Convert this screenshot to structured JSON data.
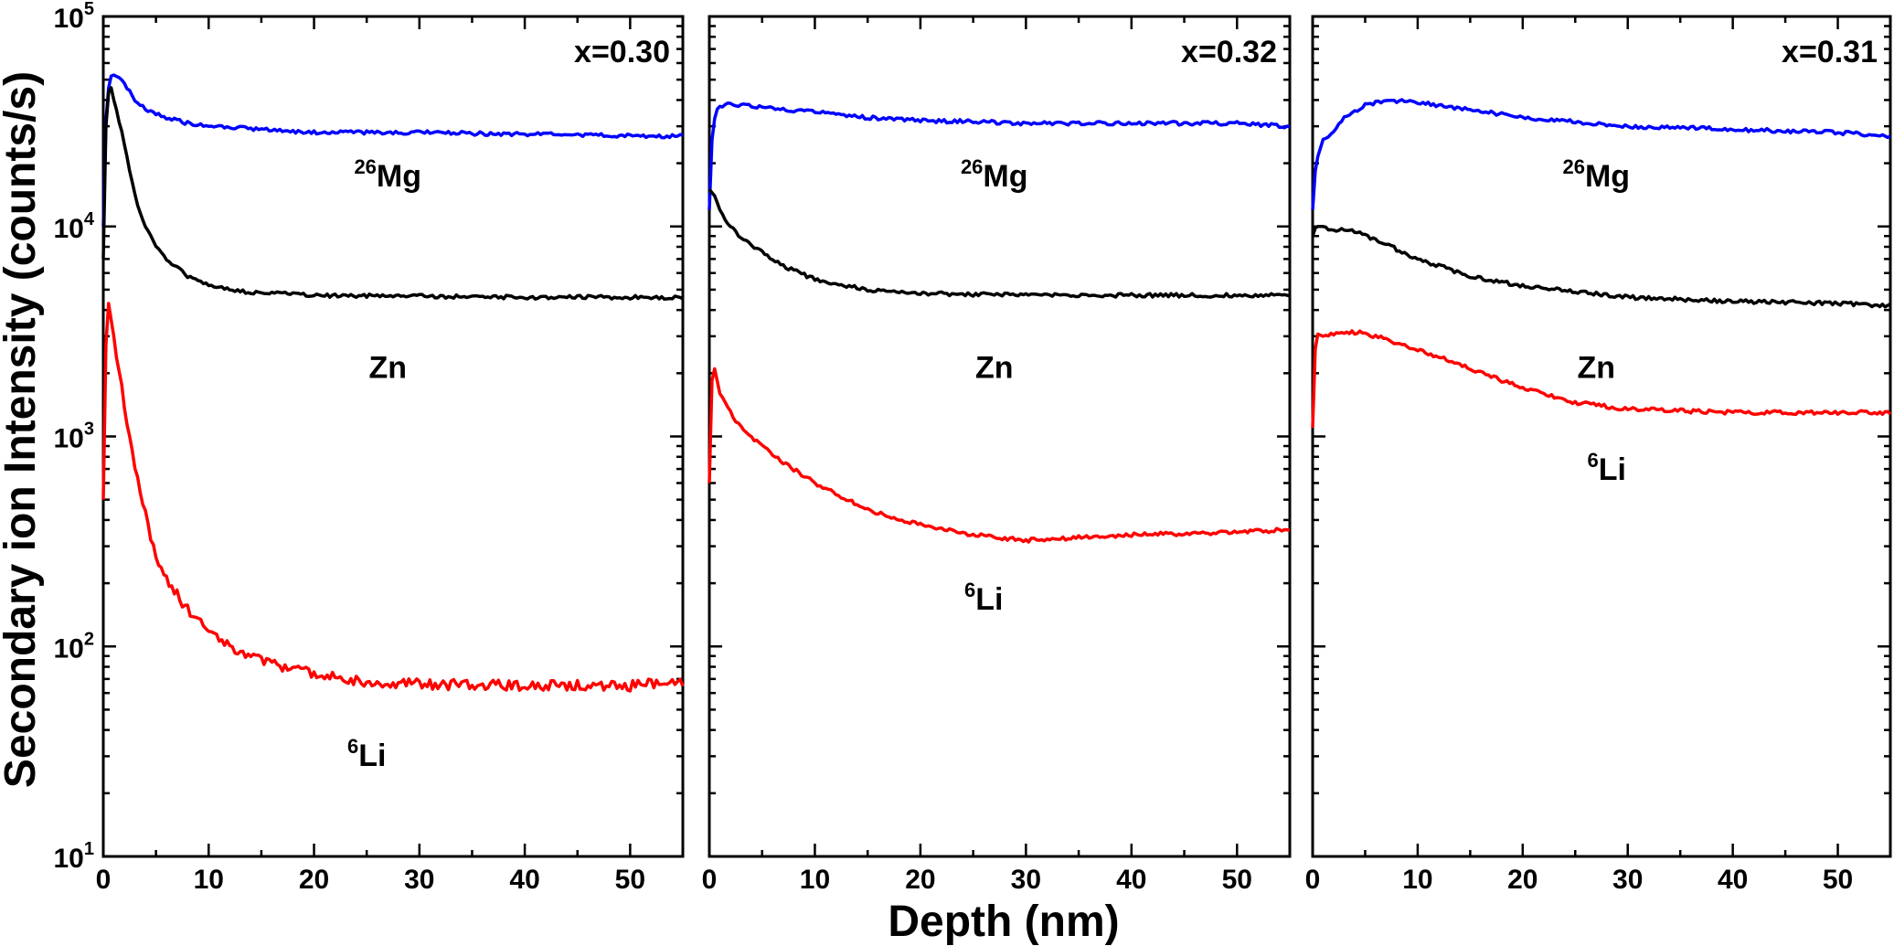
{
  "chart_data": {
    "type": "line",
    "y_scale": "log",
    "ylabel": "Secondary ion Intensity (counts/s)",
    "xlabel": "Depth (nm)",
    "xlim": [
      0,
      55
    ],
    "ylim": [
      10,
      100000
    ],
    "x_ticks": [
      "0",
      "10",
      "20",
      "30",
      "40",
      "50"
    ],
    "y_ticks": [
      {
        "base": "10",
        "exp": "1"
      },
      {
        "base": "10",
        "exp": "2"
      },
      {
        "base": "10",
        "exp": "3"
      },
      {
        "base": "10",
        "exp": "4"
      },
      {
        "base": "10",
        "exp": "5"
      }
    ],
    "panels": [
      {
        "label": "x=0.30",
        "series": [
          {
            "name": "26Mg",
            "sup": "26",
            "base": "Mg",
            "color": "#0000ff",
            "x": [
              0,
              0.3,
              0.7,
              1.2,
              2,
              3,
              4,
              6,
              8,
              10,
              15,
              20,
              30,
              40,
              50,
              55
            ],
            "y": [
              10000,
              40000,
              52000,
              53000,
              48000,
              40000,
              36000,
              33000,
              31000,
              30000,
              29000,
              28000,
              28000,
              27500,
              27000,
              27000
            ]
          },
          {
            "name": "Zn",
            "sup": "",
            "base": "Zn",
            "color": "#000000",
            "x": [
              0,
              0.3,
              0.7,
              1,
              2,
              3,
              4,
              5,
              6,
              8,
              10,
              13,
              20,
              30,
              40,
              50,
              55
            ],
            "y": [
              7000,
              40000,
              47000,
              40000,
              25000,
              14000,
              10000,
              8000,
              7000,
              5800,
              5200,
              4900,
              4700,
              4650,
              4600,
              4600,
              4600
            ]
          },
          {
            "name": "6Li",
            "sup": "6",
            "base": "Li",
            "color": "#ff0000",
            "x": [
              0,
              0.2,
              0.5,
              1,
              2,
              3,
              4,
              5,
              6,
              8,
              10,
              12,
              15,
              20,
              25,
              30,
              40,
              50,
              55
            ],
            "y": [
              500,
              2500,
              4300,
              3000,
              1400,
              700,
              420,
              270,
              210,
              150,
              120,
              100,
              85,
              75,
              68,
              66,
              65,
              65,
              68
            ]
          }
        ],
        "series_labels": [
          {
            "ref": "26Mg",
            "x": 27,
            "y": 15500
          },
          {
            "ref": "Zn",
            "x": 27,
            "y": 1900
          },
          {
            "ref": "6Li",
            "x": 25,
            "y": 27
          }
        ]
      },
      {
        "label": "x=0.32",
        "series": [
          {
            "name": "26Mg",
            "sup": "26",
            "base": "Mg",
            "color": "#0000ff",
            "x": [
              0,
              0.3,
              0.8,
              1.5,
              3,
              5,
              10,
              15,
              20,
              30,
              40,
              50,
              55
            ],
            "y": [
              12000,
              30000,
              37000,
              38000,
              38000,
              37000,
              35000,
              33000,
              32000,
              31000,
              31000,
              31000,
              30000
            ]
          },
          {
            "name": "Zn",
            "sup": "",
            "base": "Zn",
            "color": "#000000",
            "x": [
              0,
              0.5,
              1,
              2,
              3,
              5,
              7,
              10,
              15,
              20,
              30,
              40,
              50,
              55
            ],
            "y": [
              15000,
              14000,
              12000,
              10000,
              8800,
              7500,
              6500,
              5600,
              5000,
              4800,
              4700,
              4700,
              4700,
              4700
            ]
          },
          {
            "name": "6Li",
            "sup": "6",
            "base": "Li",
            "color": "#ff0000",
            "x": [
              0,
              0.2,
              0.5,
              1,
              2,
              3,
              5,
              7,
              10,
              13,
              16,
              20,
              25,
              30,
              35,
              40,
              45,
              50,
              55
            ],
            "y": [
              600,
              1800,
              2100,
              1600,
              1300,
              1100,
              900,
              750,
              600,
              500,
              430,
              380,
              340,
              320,
              330,
              340,
              345,
              350,
              360
            ]
          }
        ],
        "series_labels": [
          {
            "ref": "26Mg",
            "x": 27,
            "y": 15500
          },
          {
            "ref": "Zn",
            "x": 27,
            "y": 1900
          },
          {
            "ref": "6Li",
            "x": 26,
            "y": 150
          }
        ]
      },
      {
        "label": "x=0.31",
        "series": [
          {
            "name": "26Mg",
            "sup": "26",
            "base": "Mg",
            "color": "#0000ff",
            "x": [
              0,
              0.3,
              1,
              2,
              3,
              5,
              7,
              10,
              15,
              20,
              30,
              40,
              50,
              55
            ],
            "y": [
              12000,
              20000,
              26000,
              28000,
              33000,
              38000,
              40000,
              39000,
              36000,
              33000,
              30000,
              29000,
              28000,
              27000
            ]
          },
          {
            "name": "Zn",
            "sup": "",
            "base": "Zn",
            "color": "#000000",
            "x": [
              0,
              0.3,
              1,
              2,
              3,
              4,
              5,
              7,
              10,
              15,
              20,
              25,
              30,
              40,
              50,
              55
            ],
            "y": [
              9000,
              10000,
              10000,
              9600,
              9800,
              9500,
              9000,
              8200,
              7000,
              5800,
              5200,
              4900,
              4600,
              4400,
              4300,
              4200
            ]
          },
          {
            "name": "6Li",
            "sup": "6",
            "base": "Li",
            "color": "#ff0000",
            "x": [
              0,
              0.3,
              1,
              2,
              3,
              5,
              7,
              10,
              15,
              20,
              25,
              30,
              40,
              50,
              55
            ],
            "y": [
              1100,
              3100,
              3000,
              3100,
              3150,
              3100,
              2900,
              2600,
              2100,
              1700,
              1450,
              1350,
              1300,
              1300,
              1300
            ]
          }
        ],
        "series_labels": [
          {
            "ref": "26Mg",
            "x": 27,
            "y": 15500
          },
          {
            "ref": "Zn",
            "x": 27,
            "y": 1900
          },
          {
            "ref": "6Li",
            "x": 28,
            "y": 620
          }
        ]
      }
    ]
  }
}
